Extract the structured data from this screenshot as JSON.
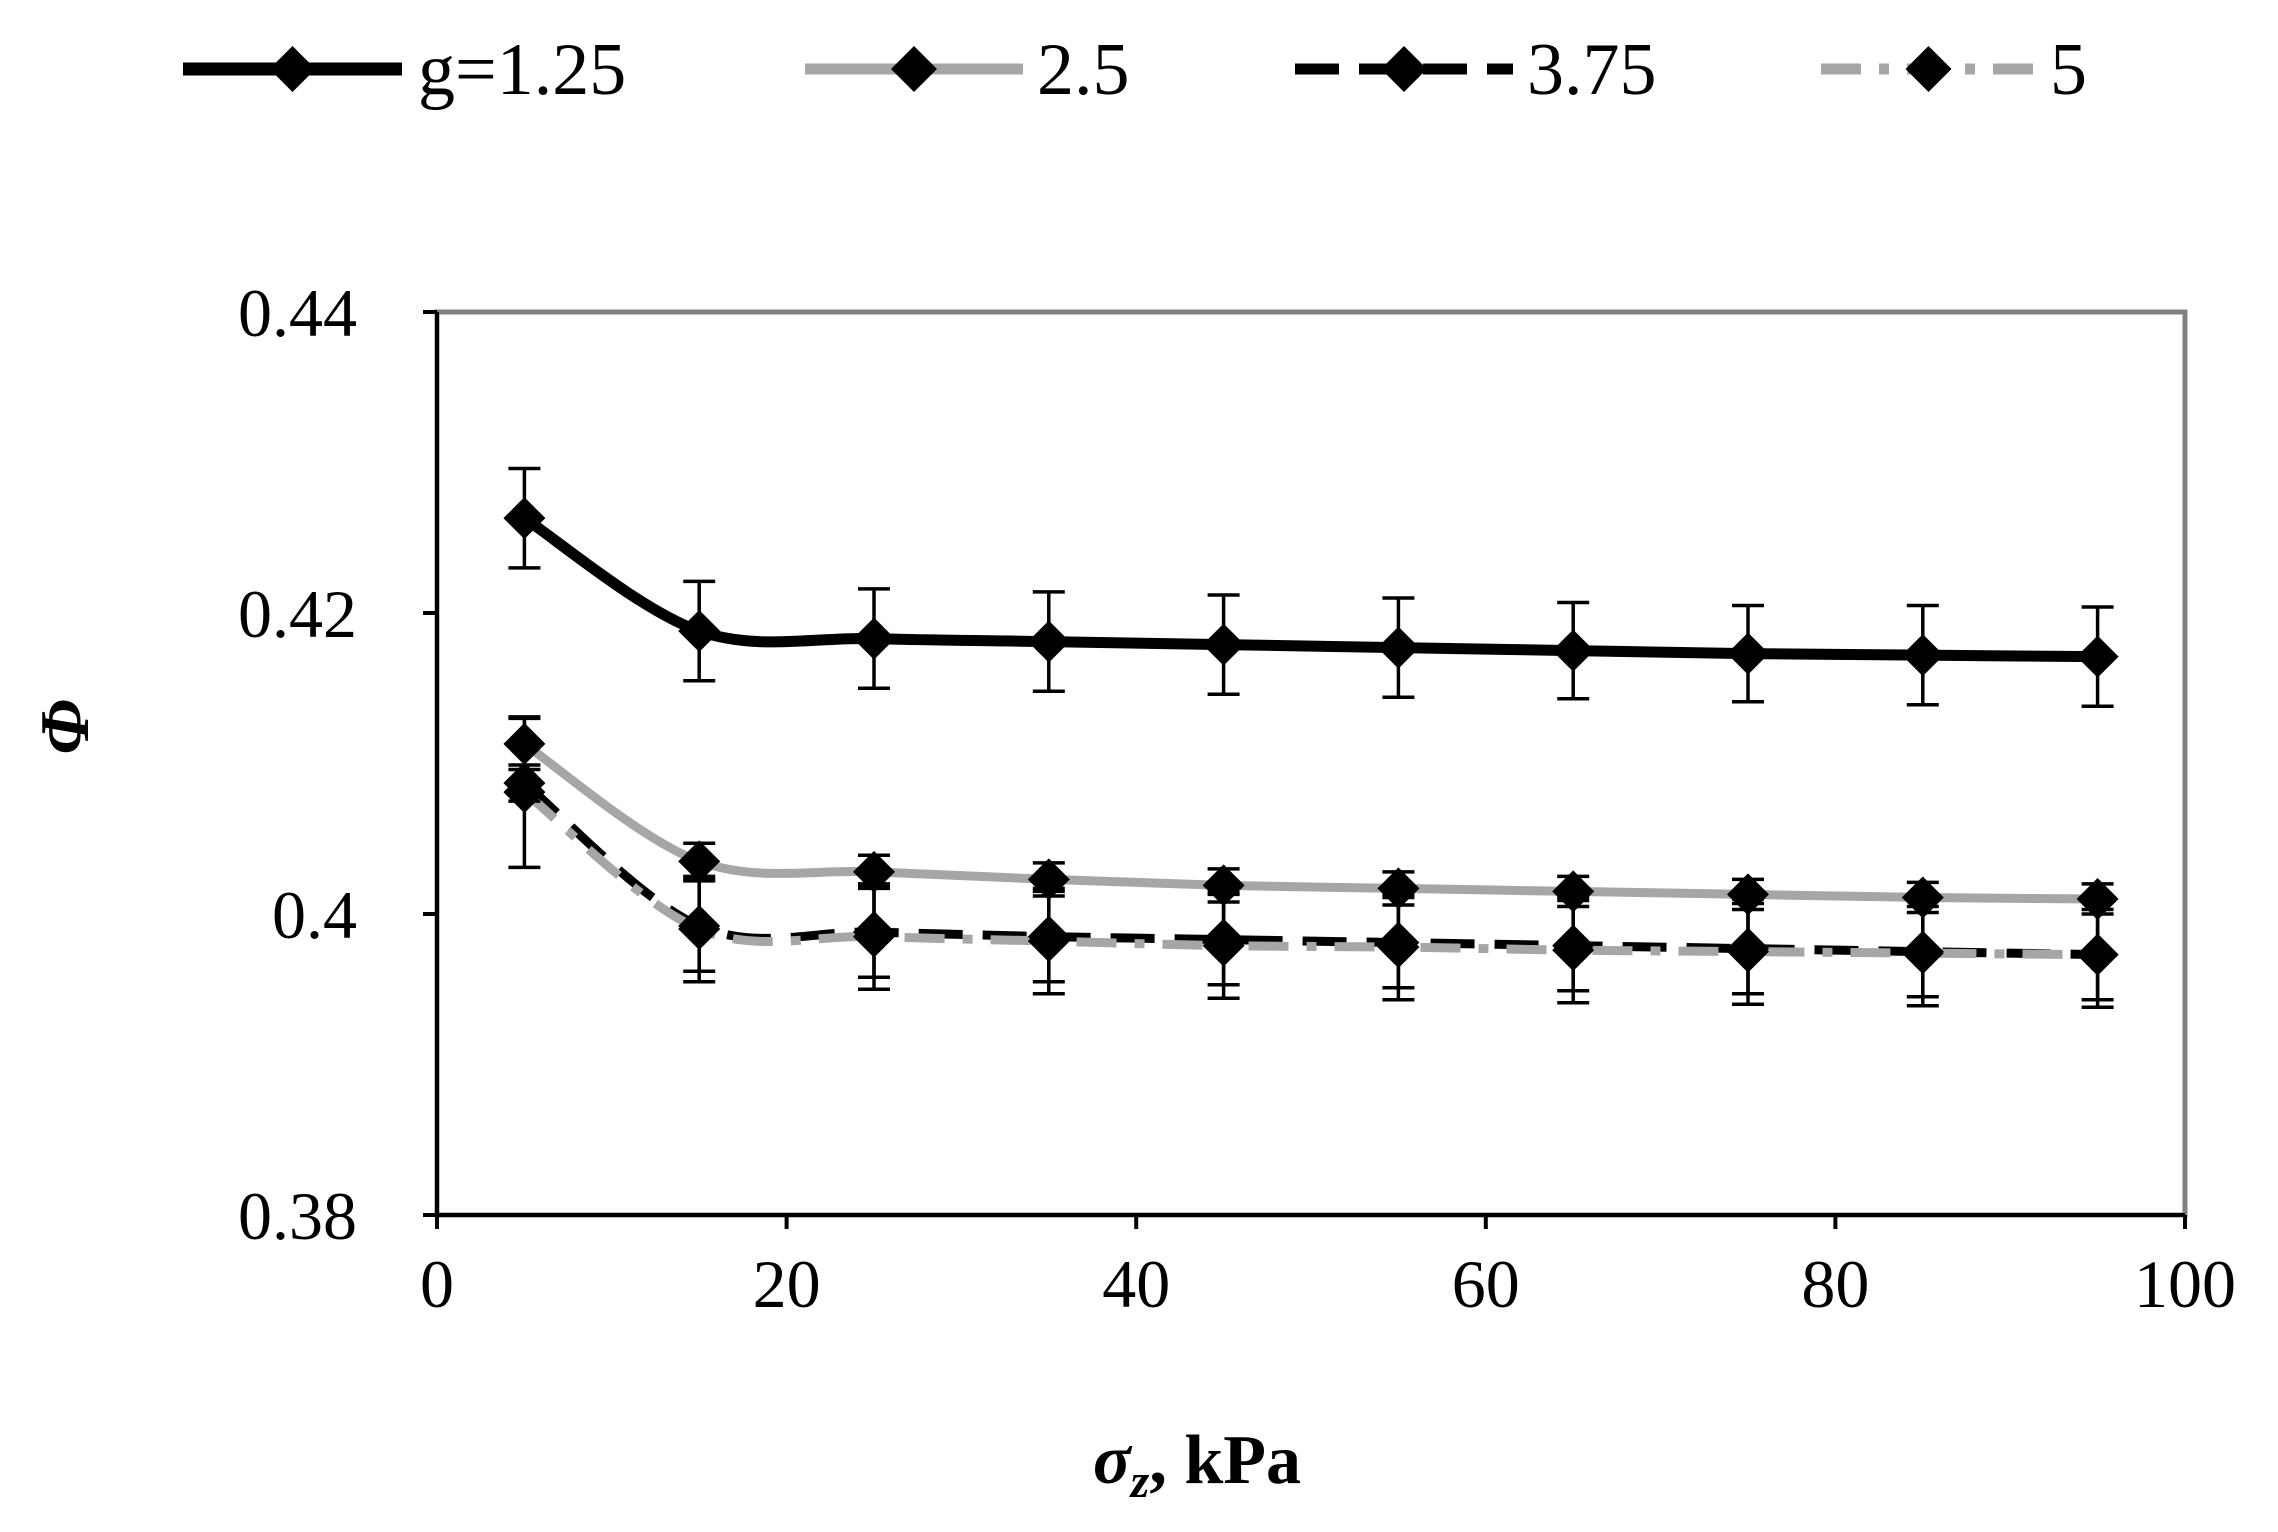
{
  "chart_data": {
    "type": "line",
    "title": "",
    "xlabel": "σ",
    "xlabel_sub": "z",
    "xlabel_unit": ", kPa",
    "ylabel": "Φ",
    "xlim": [
      0,
      100
    ],
    "ylim": [
      0.38,
      0.44
    ],
    "xticks": [
      0,
      20,
      40,
      60,
      80,
      100
    ],
    "xtick_labels": [
      "0",
      "20",
      "40",
      "60",
      "80",
      "100"
    ],
    "yticks": [
      0.38,
      0.4,
      0.42,
      0.44
    ],
    "ytick_labels": [
      "0.38",
      "0.4",
      "0.42",
      "0.44"
    ],
    "grid": false,
    "legend_position": "top",
    "x": [
      5,
      15,
      25,
      35,
      45,
      55,
      65,
      75,
      85,
      95
    ],
    "series": [
      {
        "name": "g=1.25",
        "color": "#000000",
        "dash": "solid",
        "values": [
          0.4263,
          0.4188,
          0.4183,
          0.4181,
          0.4179,
          0.4177,
          0.4175,
          0.4173,
          0.4172,
          0.4171
        ],
        "errors": [
          0.0033,
          0.0033,
          0.0033,
          0.0033,
          0.0033,
          0.0033,
          0.0032,
          0.0032,
          0.0033,
          0.0033
        ]
      },
      {
        "name": "2.5",
        "color": "#a6a6a6",
        "dash": "solid",
        "values": [
          0.4113,
          0.4035,
          0.4028,
          0.4023,
          0.4019,
          0.4017,
          0.4015,
          0.4013,
          0.4011,
          0.401
        ],
        "errors": [
          0.0017,
          0.0012,
          0.0011,
          0.0011,
          0.0011,
          0.0011,
          0.001,
          0.001,
          0.001,
          0.001
        ]
      },
      {
        "name": "3.75",
        "color": "#000000",
        "dash": "long-dash",
        "values": [
          0.4087,
          0.3992,
          0.3988,
          0.3985,
          0.3983,
          0.3981,
          0.3979,
          0.3977,
          0.3975,
          0.3973
        ],
        "errors": [
          0.0012,
          0.003,
          0.003,
          0.003,
          0.003,
          0.003,
          0.003,
          0.003,
          0.003,
          0.003
        ]
      },
      {
        "name": "5",
        "color": "#a6a6a6",
        "dash": "dash-dot",
        "values": [
          0.4081,
          0.399,
          0.3985,
          0.3982,
          0.3979,
          0.3978,
          0.3976,
          0.3975,
          0.3974,
          0.3973
        ],
        "errors": [
          0.005,
          0.0035,
          0.0035,
          0.0035,
          0.0035,
          0.0035,
          0.0035,
          0.0035,
          0.0035,
          0.0035
        ]
      }
    ]
  }
}
